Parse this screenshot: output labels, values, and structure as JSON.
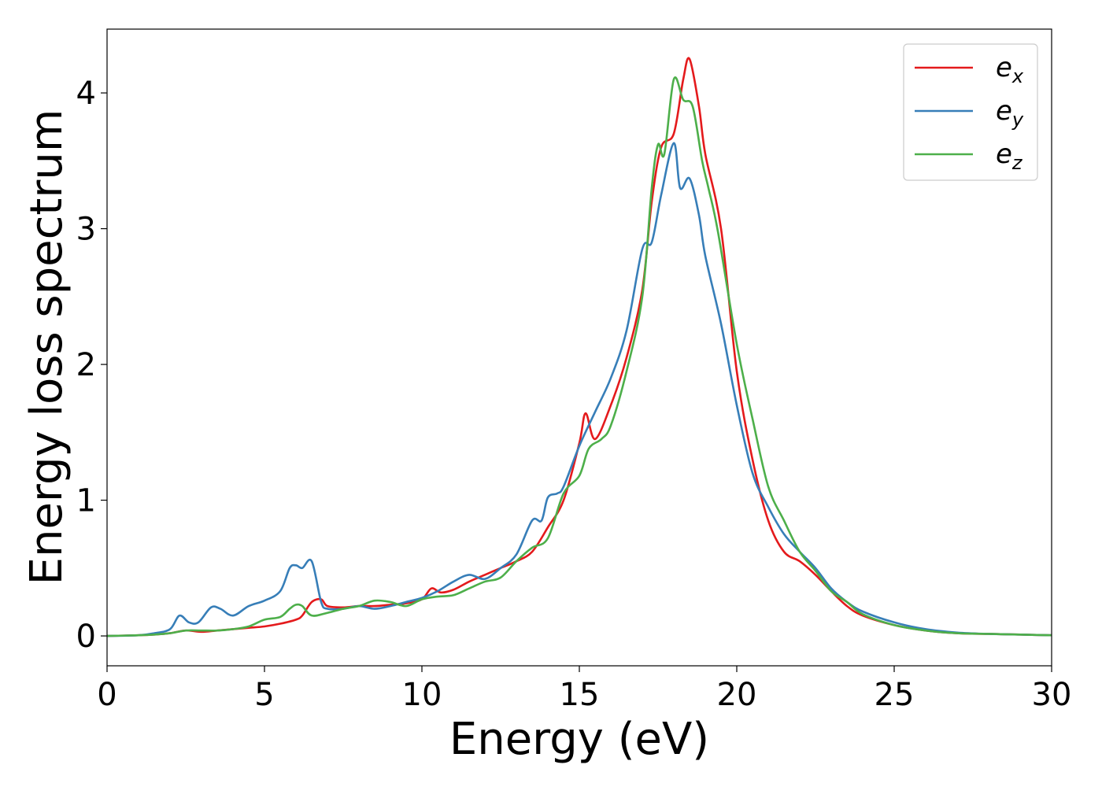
{
  "chart_data": {
    "type": "line",
    "title": "",
    "xlabel": "Energy (eV)",
    "ylabel": "Energy loss spectrum",
    "xlim": [
      0,
      30
    ],
    "ylim": [
      -0.22,
      4.47
    ],
    "xticks": [
      "0",
      "5",
      "10",
      "15",
      "20",
      "25",
      "30"
    ],
    "yticks": [
      "0",
      "1",
      "2",
      "3",
      "4"
    ],
    "grid": false,
    "legend_position": "top-right",
    "series": [
      {
        "name": "e_x",
        "label_base": "e",
        "label_sub": "x",
        "color": "#e41a1c",
        "x": [
          0,
          1,
          1.5,
          2,
          2.5,
          3,
          3.5,
          4,
          4.5,
          5,
          5.5,
          6,
          6.2,
          6.5,
          6.8,
          7,
          7.5,
          8,
          8.5,
          9,
          9.5,
          10,
          10.3,
          10.6,
          11,
          11.5,
          12,
          12.5,
          13,
          13.5,
          14,
          14.5,
          15,
          15.2,
          15.5,
          16,
          16.5,
          17,
          17.3,
          17.6,
          18,
          18.3,
          18.5,
          18.8,
          19,
          19.5,
          20,
          20.5,
          21,
          21.5,
          22,
          22.5,
          23,
          23.5,
          24,
          25,
          26,
          27,
          28,
          29,
          30
        ],
        "y": [
          0,
          0.005,
          0.01,
          0.02,
          0.04,
          0.03,
          0.04,
          0.05,
          0.06,
          0.07,
          0.09,
          0.12,
          0.15,
          0.25,
          0.27,
          0.22,
          0.21,
          0.22,
          0.22,
          0.23,
          0.24,
          0.27,
          0.35,
          0.32,
          0.34,
          0.4,
          0.45,
          0.5,
          0.55,
          0.62,
          0.8,
          1.0,
          1.42,
          1.64,
          1.45,
          1.7,
          2.05,
          2.55,
          3.2,
          3.6,
          3.7,
          4.1,
          4.25,
          3.9,
          3.55,
          3.0,
          1.95,
          1.3,
          0.85,
          0.62,
          0.55,
          0.45,
          0.33,
          0.22,
          0.15,
          0.08,
          0.04,
          0.02,
          0.015,
          0.01,
          0.005
        ]
      },
      {
        "name": "e_y",
        "label_base": "e",
        "label_sub": "y",
        "color": "#377eb8",
        "x": [
          0,
          1,
          1.5,
          2,
          2.3,
          2.6,
          2.9,
          3.3,
          3.6,
          4,
          4.5,
          5,
          5.5,
          5.8,
          6,
          6.2,
          6.5,
          6.8,
          7,
          7.5,
          8,
          8.5,
          9,
          9.5,
          10,
          10.5,
          11,
          11.5,
          12,
          12.5,
          13,
          13.5,
          13.8,
          14,
          14.3,
          14.5,
          15,
          15.5,
          16,
          16.5,
          17,
          17.3,
          17.6,
          18,
          18.2,
          18.5,
          18.8,
          19,
          19.5,
          20,
          20.5,
          21,
          21.5,
          22,
          22.5,
          23,
          23.5,
          24,
          25,
          26,
          27,
          28,
          29,
          30
        ],
        "y": [
          0,
          0.005,
          0.02,
          0.05,
          0.15,
          0.1,
          0.1,
          0.21,
          0.2,
          0.15,
          0.22,
          0.26,
          0.33,
          0.5,
          0.52,
          0.5,
          0.55,
          0.25,
          0.2,
          0.2,
          0.22,
          0.2,
          0.22,
          0.25,
          0.28,
          0.33,
          0.4,
          0.45,
          0.42,
          0.5,
          0.6,
          0.85,
          0.85,
          1.02,
          1.05,
          1.1,
          1.4,
          1.65,
          1.9,
          2.25,
          2.85,
          2.9,
          3.25,
          3.63,
          3.3,
          3.37,
          3.1,
          2.8,
          2.3,
          1.7,
          1.2,
          0.95,
          0.75,
          0.62,
          0.5,
          0.35,
          0.25,
          0.18,
          0.1,
          0.05,
          0.025,
          0.015,
          0.01,
          0.005
        ]
      },
      {
        "name": "e_z",
        "label_base": "e",
        "label_sub": "z",
        "color": "#4daf4a",
        "x": [
          0,
          1,
          1.5,
          2,
          2.5,
          3,
          3.5,
          4,
          4.5,
          5,
          5.5,
          5.8,
          6,
          6.2,
          6.5,
          7,
          7.5,
          8,
          8.5,
          9,
          9.5,
          10,
          10.5,
          11,
          11.5,
          12,
          12.5,
          13,
          13.5,
          14,
          14.5,
          15,
          15.3,
          15.7,
          16,
          16.5,
          17,
          17.3,
          17.5,
          17.7,
          18,
          18.3,
          18.6,
          18.9,
          19.1,
          19.4,
          20,
          20.5,
          21,
          21.5,
          22,
          22.5,
          23,
          23.5,
          24,
          25,
          26,
          27,
          28,
          29,
          30
        ],
        "y": [
          0,
          0.005,
          0.01,
          0.02,
          0.04,
          0.04,
          0.04,
          0.05,
          0.07,
          0.12,
          0.14,
          0.2,
          0.23,
          0.22,
          0.15,
          0.17,
          0.2,
          0.22,
          0.26,
          0.25,
          0.22,
          0.27,
          0.29,
          0.3,
          0.35,
          0.4,
          0.43,
          0.55,
          0.65,
          0.72,
          1.05,
          1.18,
          1.38,
          1.45,
          1.55,
          1.95,
          2.5,
          3.3,
          3.62,
          3.55,
          4.1,
          3.95,
          3.9,
          3.5,
          3.3,
          2.98,
          2.15,
          1.6,
          1.1,
          0.85,
          0.62,
          0.48,
          0.33,
          0.25,
          0.16,
          0.08,
          0.04,
          0.02,
          0.015,
          0.01,
          0.005
        ]
      }
    ]
  }
}
